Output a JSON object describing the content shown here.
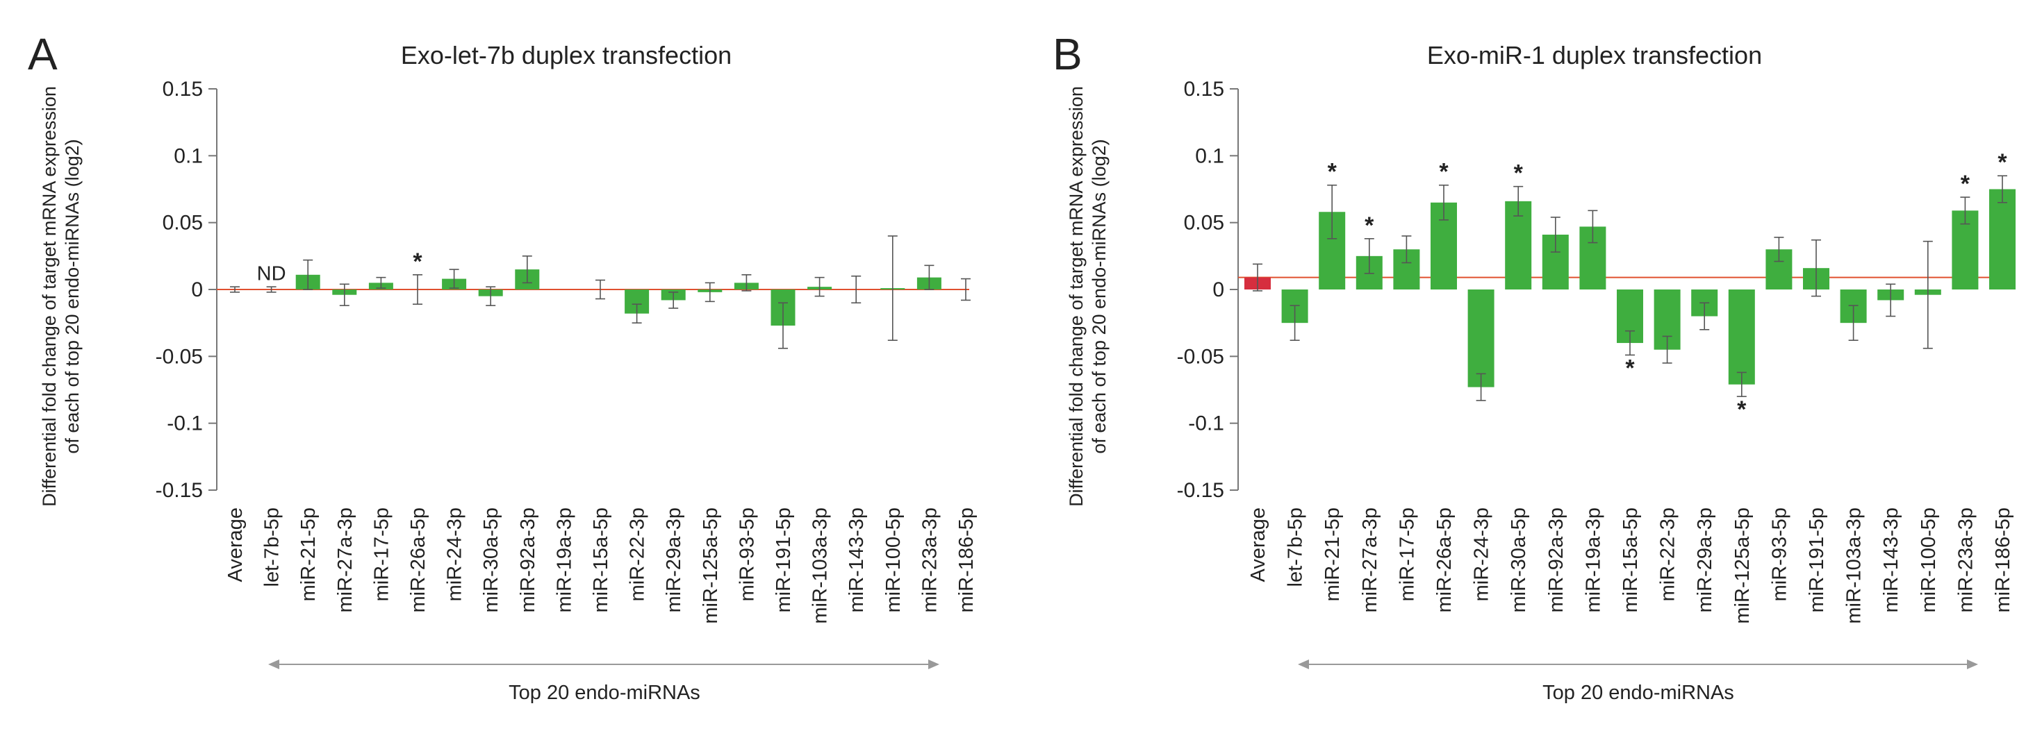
{
  "chart_data": [
    {
      "type": "bar",
      "panel_label": "A",
      "title": "Exo-let-7b duplex transfection",
      "ylabel_lines": [
        "Differential fold change of target mRNA expression",
        "of each of top 20 endo-miRNAs (log2)"
      ],
      "xlabel": "Top 20 endo-miRNAs",
      "ylim": [
        -0.15,
        0.15
      ],
      "yticks": [
        0.15,
        0.1,
        0.05,
        0,
        -0.05,
        -0.1,
        -0.15
      ],
      "ytick_labels": [
        "0.15",
        "0.1",
        "0.05",
        "0",
        "-0.05",
        "-0.1",
        "-0.15"
      ],
      "reference_line": 0.0,
      "categories": [
        "Average",
        "let-7b-5p",
        "miR-21-5p",
        "miR-27a-3p",
        "miR-17-5p",
        "miR-26a-5p",
        "miR-24-3p",
        "miR-30a-5p",
        "miR-92a-3p",
        "miR-19a-3p",
        "miR-15a-5p",
        "miR-22-3p",
        "miR-29a-3p",
        "miR-125a-5p",
        "miR-93-5p",
        "miR-191-5p",
        "miR-103a-3p",
        "miR-143-3p",
        "miR-100-5p",
        "miR-23a-3p",
        "miR-186-5p"
      ],
      "values": [
        0.0,
        0.0,
        0.011,
        -0.004,
        0.005,
        0.0,
        0.008,
        -0.005,
        0.015,
        0.0,
        0.0,
        -0.018,
        -0.008,
        -0.002,
        0.005,
        -0.027,
        0.002,
        0.0,
        0.001,
        0.009,
        0.0
      ],
      "errors": [
        0.002,
        0.002,
        0.011,
        0.008,
        0.004,
        0.011,
        0.007,
        0.007,
        0.01,
        0.0,
        0.007,
        0.007,
        0.006,
        0.007,
        0.006,
        0.017,
        0.007,
        0.01,
        0.039,
        0.009,
        0.008
      ],
      "bar_colors": [
        "#3fae3f",
        "#3fae3f",
        "#3fae3f",
        "#3fae3f",
        "#3fae3f",
        "#3fae3f",
        "#3fae3f",
        "#3fae3f",
        "#3fae3f",
        "#3fae3f",
        "#3fae3f",
        "#3fae3f",
        "#3fae3f",
        "#3fae3f",
        "#3fae3f",
        "#3fae3f",
        "#3fae3f",
        "#3fae3f",
        "#3fae3f",
        "#3fae3f",
        "#3fae3f"
      ],
      "significant": [
        false,
        false,
        false,
        false,
        false,
        true,
        false,
        false,
        false,
        false,
        false,
        false,
        false,
        false,
        false,
        false,
        false,
        false,
        false,
        false,
        false
      ],
      "annotations": [
        {
          "category": "let-7b-5p",
          "text": "ND"
        }
      ]
    },
    {
      "type": "bar",
      "panel_label": "B",
      "title": "Exo-miR-1 duplex transfection",
      "ylabel_lines": [
        "Differential fold change of target mRNA expression",
        "of each of top 20 endo-miRNAs (log2)"
      ],
      "xlabel": "Top 20 endo-miRNAs",
      "ylim": [
        -0.15,
        0.15
      ],
      "yticks": [
        0.15,
        0.1,
        0.05,
        0,
        -0.05,
        -0.1,
        -0.15
      ],
      "ytick_labels": [
        "0.15",
        "0.1",
        "0.05",
        "0",
        "-0.05",
        "-0.1",
        "-0.15"
      ],
      "reference_line": 0.009,
      "categories": [
        "Average",
        "let-7b-5p",
        "miR-21-5p",
        "miR-27a-3p",
        "miR-17-5p",
        "miR-26a-5p",
        "miR-24-3p",
        "miR-30a-5p",
        "miR-92a-3p",
        "miR-19a-3p",
        "miR-15a-5p",
        "miR-22-3p",
        "miR-29a-3p",
        "miR-125a-5p",
        "miR-93-5p",
        "miR-191-5p",
        "miR-103a-3p",
        "miR-143-3p",
        "miR-100-5p",
        "miR-23a-3p",
        "miR-186-5p"
      ],
      "values": [
        0.009,
        -0.025,
        0.058,
        0.025,
        0.03,
        0.065,
        -0.073,
        0.066,
        0.041,
        0.047,
        -0.04,
        -0.045,
        -0.02,
        -0.071,
        0.03,
        0.016,
        -0.025,
        -0.008,
        -0.004,
        0.059,
        0.075
      ],
      "errors": [
        0.01,
        0.013,
        0.02,
        0.013,
        0.01,
        0.013,
        0.01,
        0.011,
        0.013,
        0.012,
        0.009,
        0.01,
        0.01,
        0.009,
        0.009,
        0.021,
        0.013,
        0.012,
        0.04,
        0.01,
        0.01
      ],
      "bar_colors": [
        "#d62e3e",
        "#3fae3f",
        "#3fae3f",
        "#3fae3f",
        "#3fae3f",
        "#3fae3f",
        "#3fae3f",
        "#3fae3f",
        "#3fae3f",
        "#3fae3f",
        "#3fae3f",
        "#3fae3f",
        "#3fae3f",
        "#3fae3f",
        "#3fae3f",
        "#3fae3f",
        "#3fae3f",
        "#3fae3f",
        "#3fae3f",
        "#3fae3f",
        "#3fae3f"
      ],
      "significant": [
        false,
        false,
        true,
        true,
        false,
        true,
        false,
        true,
        false,
        false,
        true,
        false,
        false,
        true,
        false,
        false,
        false,
        false,
        false,
        true,
        true
      ],
      "annotations": []
    }
  ],
  "star_symbol": "*"
}
